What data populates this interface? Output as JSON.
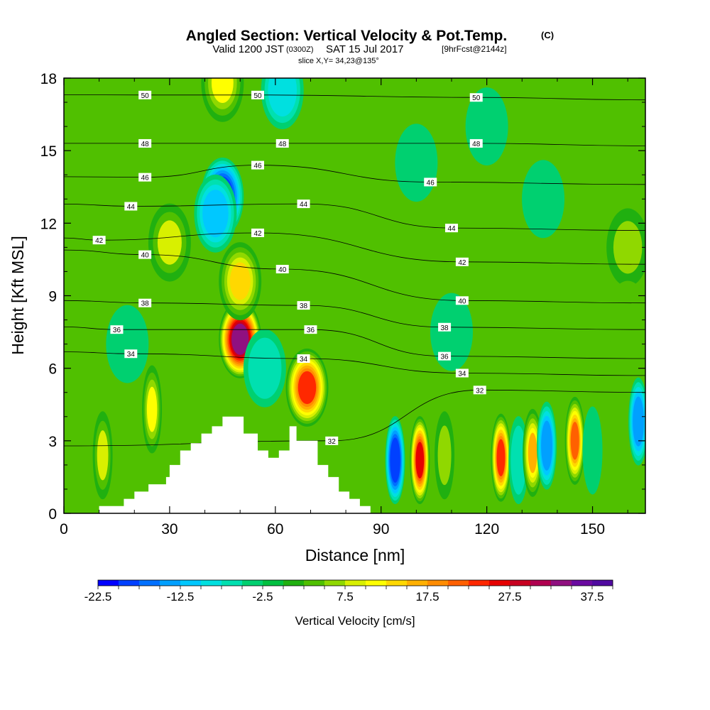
{
  "header": {
    "title_main": "Angled Section: Vertical Velocity & Pot.Temp.",
    "title_copy": "(C)",
    "valid_a": "Valid 1200 JST",
    "valid_utc": "(0300Z)",
    "valid_b": "SAT 15 Jul 2017",
    "fcst": "[9hrFcst@2144z]",
    "slice": "slice X,Y= 34,23@135°"
  },
  "chart_data": {
    "type": "heatmap",
    "xlabel": "Distance [nm]",
    "ylabel": "Height [Kft MSL]",
    "xlim": [
      0,
      165
    ],
    "ylim": [
      0,
      18
    ],
    "xticks": [
      0,
      30,
      60,
      90,
      120,
      150
    ],
    "yticks": [
      0,
      3,
      6,
      9,
      12,
      15,
      18
    ],
    "colorbar": {
      "title": "Vertical Velocity [cm/s]",
      "min": -22.5,
      "max": 40,
      "step": 2.5,
      "tick_labels": [
        "-22.5",
        "-12.5",
        "-2.5",
        "7.5",
        "17.5",
        "27.5",
        "37.5"
      ],
      "colors": [
        "#0000ff",
        "#0040ff",
        "#0070ff",
        "#00a0ff",
        "#00c8ff",
        "#00e0e0",
        "#00e0b0",
        "#00d070",
        "#00c040",
        "#20b010",
        "#50c000",
        "#90d800",
        "#d8f000",
        "#ffff00",
        "#ffd800",
        "#ffb000",
        "#ff8c00",
        "#ff6000",
        "#ff2800",
        "#e60000",
        "#c80020",
        "#b00050",
        "#901080",
        "#6a0aa0",
        "#500aa0"
      ]
    },
    "terrain_profile": {
      "x": [
        0,
        10,
        10,
        17,
        17,
        20,
        20,
        24,
        24,
        29,
        29,
        30,
        30,
        33,
        33,
        36,
        36,
        39,
        39,
        42,
        42,
        45,
        45,
        51,
        51,
        55,
        55,
        58,
        58,
        61,
        61,
        64,
        64,
        66,
        66,
        72,
        72,
        75,
        75,
        78,
        78,
        81,
        81,
        84,
        84,
        87,
        87,
        165
      ],
      "z": [
        0,
        0,
        0.3,
        0.3,
        0.6,
        0.6,
        0.9,
        0.9,
        1.2,
        1.2,
        1.5,
        1.5,
        2.0,
        2.0,
        2.6,
        2.6,
        2.9,
        2.9,
        3.3,
        3.3,
        3.6,
        3.6,
        4.0,
        4.0,
        3.3,
        3.3,
        2.6,
        2.6,
        2.3,
        2.3,
        2.6,
        2.6,
        3.6,
        3.6,
        3.0,
        3.0,
        2.0,
        2.0,
        1.5,
        1.5,
        0.9,
        0.9,
        0.6,
        0.6,
        0.3,
        0.3,
        0,
        0
      ]
    },
    "velocity_features": [
      {
        "x": 11,
        "z": 2.4,
        "value": 7.5
      },
      {
        "x": 25,
        "z": 4.3,
        "value": 10
      },
      {
        "x": 30,
        "z": 11.2,
        "value": 7.5
      },
      {
        "x": 45,
        "z": 13.1,
        "value": -20
      },
      {
        "x": 43,
        "z": 12.4,
        "value": -12.5
      },
      {
        "x": 50,
        "z": 7.2,
        "value": 32.5
      },
      {
        "x": 50,
        "z": 9.6,
        "value": 12.5
      },
      {
        "x": 57,
        "z": 6.0,
        "value": -7.5
      },
      {
        "x": 69,
        "z": 5.2,
        "value": 22.5
      },
      {
        "x": 18,
        "z": 7.0,
        "value": -5
      },
      {
        "x": 45,
        "z": 17.8,
        "value": 10
      },
      {
        "x": 62,
        "z": 17.5,
        "value": -10
      },
      {
        "x": 94,
        "z": 2.2,
        "value": -20
      },
      {
        "x": 101,
        "z": 2.2,
        "value": 25
      },
      {
        "x": 108,
        "z": 2.4,
        "value": 5
      },
      {
        "x": 124,
        "z": 2.3,
        "value": 22.5
      },
      {
        "x": 129,
        "z": 2.2,
        "value": -7.5
      },
      {
        "x": 133,
        "z": 2.5,
        "value": 15
      },
      {
        "x": 137,
        "z": 2.8,
        "value": -15
      },
      {
        "x": 145,
        "z": 3.0,
        "value": 20
      },
      {
        "x": 150,
        "z": 2.6,
        "value": -5
      },
      {
        "x": 163,
        "z": 3.8,
        "value": -15
      },
      {
        "x": 136,
        "z": 13.0,
        "value": -5
      },
      {
        "x": 110,
        "z": 7.5,
        "value": -5
      },
      {
        "x": 160,
        "z": 11.0,
        "value": 5
      },
      {
        "x": 120,
        "z": 16.0,
        "value": -5
      },
      {
        "x": 100,
        "z": 14.5,
        "value": -5
      },
      {
        "x": 160,
        "z": 8.0,
        "value": 2.5
      }
    ],
    "theta_contours": [
      {
        "label": "50",
        "label_positions": [
          [
            23,
            17.3
          ],
          [
            55,
            17.3
          ],
          [
            117,
            17.2
          ]
        ]
      },
      {
        "label": "48",
        "label_positions": [
          [
            23,
            15.3
          ],
          [
            62,
            15.3
          ],
          [
            117,
            15.3
          ]
        ]
      },
      {
        "label": "46",
        "label_positions": [
          [
            23,
            13.9
          ],
          [
            55,
            14.4
          ],
          [
            104,
            13.7
          ]
        ]
      },
      {
        "label": "44",
        "label_positions": [
          [
            19,
            12.7
          ],
          [
            68,
            12.8
          ],
          [
            110,
            11.8
          ]
        ]
      },
      {
        "label": "42",
        "label_positions": [
          [
            10,
            11.3
          ],
          [
            55,
            11.6
          ],
          [
            113,
            10.4
          ]
        ]
      },
      {
        "label": "40",
        "label_positions": [
          [
            23,
            10.7
          ],
          [
            62,
            10.1
          ],
          [
            113,
            8.8
          ]
        ]
      },
      {
        "label": "38",
        "label_positions": [
          [
            23,
            8.7
          ],
          [
            68,
            8.6
          ],
          [
            108,
            7.7
          ]
        ]
      },
      {
        "label": "36",
        "label_positions": [
          [
            15,
            7.6
          ],
          [
            70,
            7.6
          ],
          [
            108,
            6.5
          ]
        ]
      },
      {
        "label": "34",
        "label_positions": [
          [
            19,
            6.6
          ],
          [
            68,
            6.4
          ],
          [
            113,
            5.8
          ]
        ]
      },
      {
        "label": "32",
        "label_positions": [
          [
            76,
            3.0
          ],
          [
            118,
            5.1
          ]
        ]
      }
    ]
  }
}
